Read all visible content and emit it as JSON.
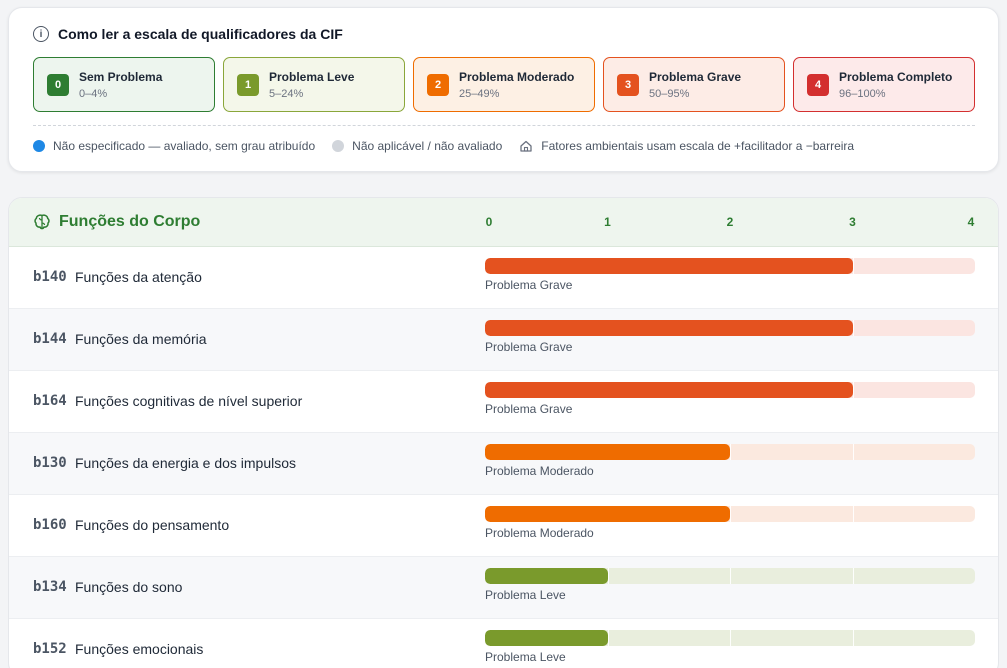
{
  "legend": {
    "info_icon": "info-icon",
    "title": "Como ler a escala de qualificadores da CIF",
    "scale": [
      {
        "code": "0",
        "label": "Sem Problema",
        "range": "0–4%",
        "color": "#2e7d32",
        "bg": "#edf5ee",
        "border": "#2e7d32"
      },
      {
        "code": "1",
        "label": "Problema Leve",
        "range": "5–24%",
        "color": "#7a9a2c",
        "bg": "#f4f7ea",
        "border": "#8aa63a"
      },
      {
        "code": "2",
        "label": "Problema Moderado",
        "range": "25–49%",
        "color": "#ef6c00",
        "bg": "#fdf0e4",
        "border": "#ef6c00"
      },
      {
        "code": "3",
        "label": "Problema Grave",
        "range": "50–95%",
        "color": "#e4521f",
        "bg": "#fdece6",
        "border": "#e4521f"
      },
      {
        "code": "4",
        "label": "Problema Completo",
        "range": "96–100%",
        "color": "#d32f2f",
        "bg": "#fdeaea",
        "border": "#d32f2f"
      }
    ],
    "notes": [
      {
        "icon": "blue-dot-icon",
        "color": "#1e88e5",
        "text": "Não especificado — avaliado, sem grau atribuído"
      },
      {
        "icon": "gray-dot-icon",
        "color": "#d1d5db",
        "text": "Não aplicável / não avaliado"
      },
      {
        "icon": "home-icon",
        "color": "#6b7280",
        "text": "Fatores ambientais usam escala de +facilitador a −barreira"
      }
    ]
  },
  "section": {
    "icon": "brain-icon",
    "title": "Funções do Corpo",
    "ticks": [
      "0",
      "1",
      "2",
      "3",
      "4"
    ],
    "rows": [
      {
        "code": "b140",
        "name": "Funções da atenção",
        "qualifier": 3,
        "status": "Problema Grave"
      },
      {
        "code": "b144",
        "name": "Funções da memória",
        "qualifier": 3,
        "status": "Problema Grave"
      },
      {
        "code": "b164",
        "name": "Funções cognitivas de nível superior",
        "qualifier": 3,
        "status": "Problema Grave"
      },
      {
        "code": "b130",
        "name": "Funções da energia e dos impulsos",
        "qualifier": 2,
        "status": "Problema Moderado"
      },
      {
        "code": "b160",
        "name": "Funções do pensamento",
        "qualifier": 2,
        "status": "Problema Moderado"
      },
      {
        "code": "b134",
        "name": "Funções do sono",
        "qualifier": 1,
        "status": "Problema Leve"
      },
      {
        "code": "b152",
        "name": "Funções emocionais",
        "qualifier": 1,
        "status": "Problema Leve"
      }
    ]
  },
  "colors": {
    "q1": "#7a9a2c",
    "q1_track": "#e9eedd",
    "q2": "#ef6c00",
    "q2_track": "#fbe9df",
    "q3": "#e4521f",
    "q3_track": "#fbe5e1"
  }
}
